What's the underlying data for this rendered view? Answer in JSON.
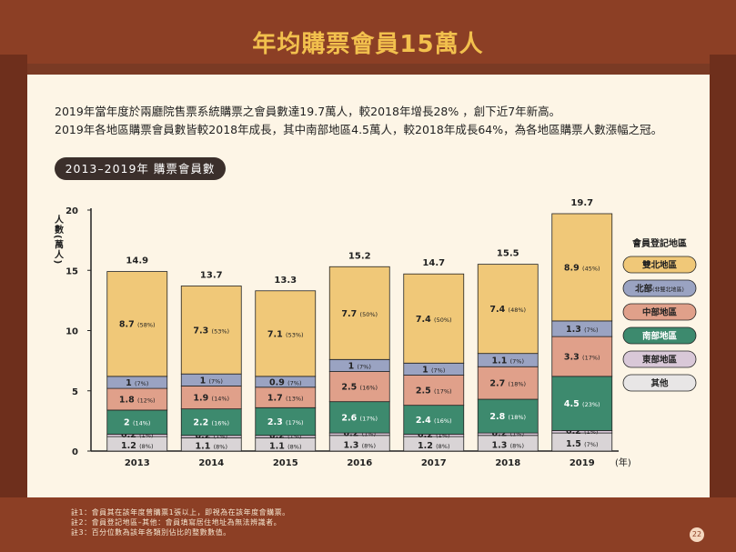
{
  "title": "年均購票會員15萬人",
  "intro": [
    "2019年當年度於兩廳院售票系統購票之會員數達19.7萬人，較2018年增長28% ，創下近7年新高。",
    "2019年各地區購票會員數皆較2018年成長，其中南部地區4.5萬人，較2018年成長64%，為各地區購票人數漲幅之冠。"
  ],
  "chart_title": "2013–2019年 購票會員數",
  "notes": [
    "註1：會員其在該年度曾購票1張以上，即視為在該年度會購票。",
    "註2：會員登記地區–其他：會員填寫居住地址為無法辨識者。",
    "註3：百分位數為該年各類別佔比的整數數值。"
  ],
  "page_number": "22",
  "chart_data": {
    "type": "bar",
    "stacked": true,
    "ylabel": "人數(萬人)",
    "xlabel": "(年)",
    "ylim": [
      0,
      20
    ],
    "yticks": [
      "0",
      "5",
      "10",
      "15",
      "20"
    ],
    "legend_title": "會員登記地區",
    "legend_position": "right",
    "categories": [
      "2013",
      "2014",
      "2015",
      "2016",
      "2017",
      "2018",
      "2019"
    ],
    "totals": [
      "14.9",
      "13.7",
      "13.3",
      "15.2",
      "14.7",
      "15.5",
      "19.7"
    ],
    "series": [
      {
        "name": "其他",
        "color": "#d9d4d6",
        "values": [
          1.2,
          1.1,
          1.1,
          1.3,
          1.2,
          1.3,
          1.5
        ],
        "labels": [
          "1.2",
          "1.1",
          "1.1",
          "1.3",
          "1.2",
          "1.3",
          "1.5"
        ],
        "pcts": [
          "(8%)",
          "(8%)",
          "(8%)",
          "(8%)",
          "(8%)",
          "(8%)",
          "(7%)"
        ]
      },
      {
        "name": "東部地區",
        "color": "#d9c8d8",
        "values": [
          0.2,
          0.2,
          0.2,
          0.2,
          0.2,
          0.2,
          0.2
        ],
        "labels": [
          "0.2",
          "0.2",
          "0.2",
          "0.2",
          "0.2",
          "0.2",
          "0.2"
        ],
        "pcts": [
          "(1%)",
          "(1%)",
          "(1%)",
          "(1%)",
          "(1%)",
          "(1%)",
          "(1%)"
        ]
      },
      {
        "name": "南部地區",
        "color": "#3d8a6e",
        "values": [
          2,
          2.2,
          2.3,
          2.6,
          2.4,
          2.8,
          4.5
        ],
        "labels": [
          "2",
          "2.2",
          "2.3",
          "2.6",
          "2.4",
          "2.8",
          "4.5"
        ],
        "pcts": [
          "(14%)",
          "(16%)",
          "(17%)",
          "(17%)",
          "(16%)",
          "(18%)",
          "(23%)"
        ]
      },
      {
        "name": "中部地區",
        "color": "#e0a08a",
        "values": [
          1.8,
          1.9,
          1.7,
          2.5,
          2.5,
          2.7,
          3.3
        ],
        "labels": [
          "1.8",
          "1.9",
          "1.7",
          "2.5",
          "2.5",
          "2.7",
          "3.3"
        ],
        "pcts": [
          "(12%)",
          "(14%)",
          "(13%)",
          "(16%)",
          "(17%)",
          "(18%)",
          "(17%)"
        ]
      },
      {
        "name": "北部(非雙北地區)",
        "color": "#9aa3c2",
        "values": [
          1,
          1,
          0.9,
          1,
          1,
          1.1,
          1.3
        ],
        "labels": [
          "1",
          "1",
          "0.9",
          "1",
          "1",
          "1.1",
          "1.3"
        ],
        "pcts": [
          "(7%)",
          "(7%)",
          "(7%)",
          "(7%)",
          "(7%)",
          "(7%)",
          "(7%)"
        ]
      },
      {
        "name": "雙北地區",
        "color": "#f0c878",
        "values": [
          8.7,
          7.3,
          7.1,
          7.7,
          7.4,
          7.4,
          8.9
        ],
        "labels": [
          "8.7",
          "7.3",
          "7.1",
          "7.7",
          "7.4",
          "7.4",
          "8.9"
        ],
        "pcts": [
          "(58%)",
          "(53%)",
          "(53%)",
          "(50%)",
          "(50%)",
          "(48%)",
          "(45%)"
        ]
      }
    ],
    "legend": [
      {
        "label": "雙北地區",
        "sub": "",
        "color": "#f0c878"
      },
      {
        "label": "北部",
        "sub": "(非雙北地區)",
        "color": "#9aa3c2"
      },
      {
        "label": "中部地區",
        "sub": "",
        "color": "#e0a08a"
      },
      {
        "label": "南部地區",
        "sub": "",
        "color": "#3d8a6e",
        "text_color": "#ffffff"
      },
      {
        "label": "東部地區",
        "sub": "",
        "color": "#d9c8d8"
      },
      {
        "label": "其他",
        "sub": "",
        "color": "#e8e6e6"
      }
    ]
  }
}
